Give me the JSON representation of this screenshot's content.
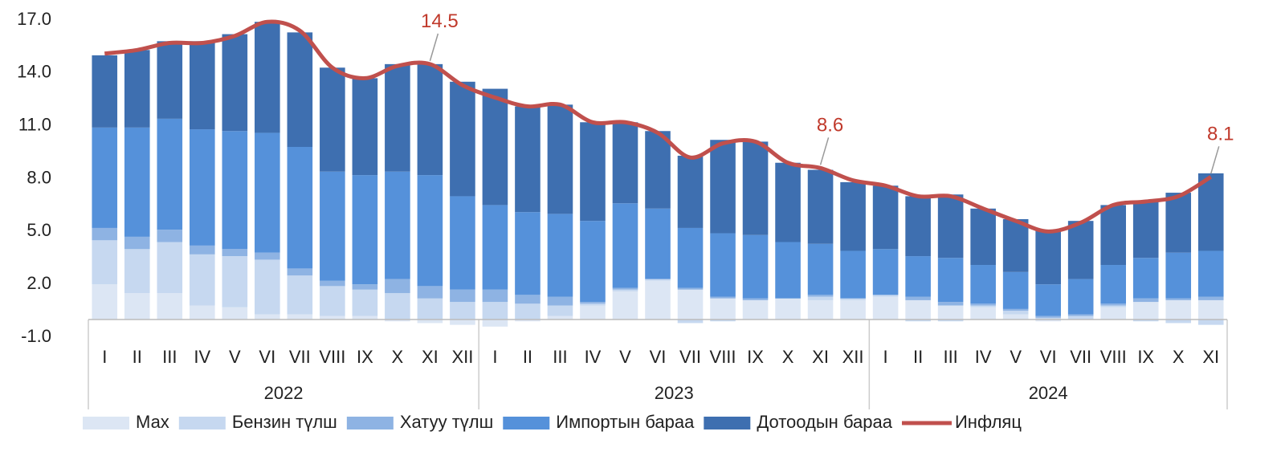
{
  "chart_data": {
    "type": "bar",
    "groups": [
      {
        "label": "2022",
        "categories": [
          "I",
          "II",
          "III",
          "IV",
          "V",
          "VI",
          "VII",
          "VIII",
          "IX",
          "X",
          "XI",
          "XII"
        ]
      },
      {
        "label": "2023",
        "categories": [
          "I",
          "II",
          "III",
          "IV",
          "V",
          "VI",
          "VII",
          "VIII",
          "IX",
          "X",
          "XI",
          "XII"
        ]
      },
      {
        "label": "2024",
        "categories": [
          "I",
          "II",
          "III",
          "IV",
          "V",
          "VI",
          "VII",
          "VIII",
          "IX",
          "X",
          "XI"
        ]
      }
    ],
    "ylim": [
      -1,
      17
    ],
    "yticks": [
      {
        "value": -1,
        "label": "-1.0"
      },
      {
        "value": 2,
        "label": "2.0"
      },
      {
        "value": 5,
        "label": "5.0"
      },
      {
        "value": 8,
        "label": "8.0"
      },
      {
        "value": 11,
        "label": "11.0"
      },
      {
        "value": 14,
        "label": "14.0"
      },
      {
        "value": 17,
        "label": "17.0"
      }
    ],
    "stacked": true,
    "series": [
      {
        "name": "Мах",
        "color": "#dce6f4",
        "values": [
          2.0,
          1.5,
          1.5,
          0.8,
          0.7,
          0.3,
          0.3,
          0.2,
          0.2,
          -0.1,
          -0.2,
          -0.3,
          -0.4,
          -0.1,
          0.2,
          0.8,
          1.6,
          2.2,
          1.7,
          1.2,
          1.1,
          1.2,
          1.1,
          1.1,
          1.3,
          1.1,
          0.8,
          0.7,
          0.3,
          -0.1,
          0,
          0.7,
          1.0,
          1.1,
          1.1
        ]
      },
      {
        "name": "Бензин түлш",
        "color": "#c6d8f0",
        "values": [
          2.5,
          2.5,
          2.9,
          2.9,
          2.9,
          3.1,
          2.2,
          1.7,
          1.5,
          1.5,
          1.2,
          1.0,
          1.0,
          0.9,
          0.6,
          0.1,
          0.1,
          0.1,
          -0.2,
          -0.1,
          0,
          0,
          0.2,
          0.1,
          0.1,
          -0.1,
          -0.1,
          0.1,
          0.2,
          0.1,
          0.2,
          0.1,
          -0.1,
          -0.2,
          -0.3
        ]
      },
      {
        "name": "Хатуу түлш",
        "color": "#8eb3e3",
        "values": [
          0.7,
          0.7,
          0.7,
          0.5,
          0.4,
          0.4,
          0.4,
          0.3,
          0.3,
          0.8,
          0.7,
          0.7,
          0.7,
          0.5,
          0.5,
          0.1,
          0.1,
          0,
          0.1,
          0.1,
          0.1,
          0,
          0.1,
          0,
          0,
          0.2,
          0.2,
          0.1,
          0.1,
          0.1,
          0.1,
          0.1,
          0.2,
          0.1,
          0.2
        ]
      },
      {
        "name": "Импортын бараа",
        "color": "#5591da",
        "values": [
          5.7,
          6.2,
          6.3,
          6.6,
          6.7,
          6.8,
          6.9,
          6.2,
          6.2,
          6.1,
          6.3,
          5.3,
          4.8,
          4.7,
          4.7,
          4.6,
          4.8,
          4.0,
          3.4,
          3.6,
          3.6,
          3.2,
          2.9,
          2.7,
          2.6,
          2.3,
          2.5,
          2.2,
          2.1,
          1.8,
          2.0,
          2.2,
          2.3,
          2.6,
          2.6
        ]
      },
      {
        "name": "Дотоодын бараа",
        "color": "#3e6fb0",
        "values": [
          4.1,
          4.4,
          4.4,
          5.0,
          5.5,
          6.3,
          6.5,
          5.9,
          5.5,
          6.1,
          6.3,
          6.5,
          6.6,
          6.0,
          6.2,
          5.6,
          4.6,
          4.4,
          4.1,
          5.3,
          5.3,
          4.5,
          4.2,
          3.9,
          3.6,
          3.4,
          3.6,
          3.2,
          3.0,
          3.1,
          3.3,
          3.4,
          3.2,
          3.4,
          4.4
        ]
      },
      {
        "name": "Инфляц",
        "type": "line",
        "color": "#c0504d",
        "values": [
          15.1,
          15.3,
          15.7,
          15.7,
          16.1,
          16.9,
          16.4,
          14.3,
          13.7,
          14.4,
          14.5,
          13.3,
          12.6,
          12.1,
          12.2,
          11.2,
          11.2,
          10.6,
          9.2,
          10.0,
          10.1,
          8.9,
          8.6,
          7.9,
          7.6,
          7.0,
          7.0,
          6.3,
          5.6,
          5.0,
          5.5,
          6.5,
          6.7,
          7.0,
          8.1
        ],
        "value_labels": [
          null,
          null,
          null,
          null,
          null,
          null,
          null,
          null,
          null,
          null,
          "14.5",
          null,
          null,
          null,
          null,
          null,
          null,
          null,
          null,
          null,
          null,
          null,
          "8.6",
          null,
          null,
          null,
          null,
          null,
          null,
          null,
          null,
          null,
          null,
          null,
          "8.1"
        ]
      }
    ]
  }
}
